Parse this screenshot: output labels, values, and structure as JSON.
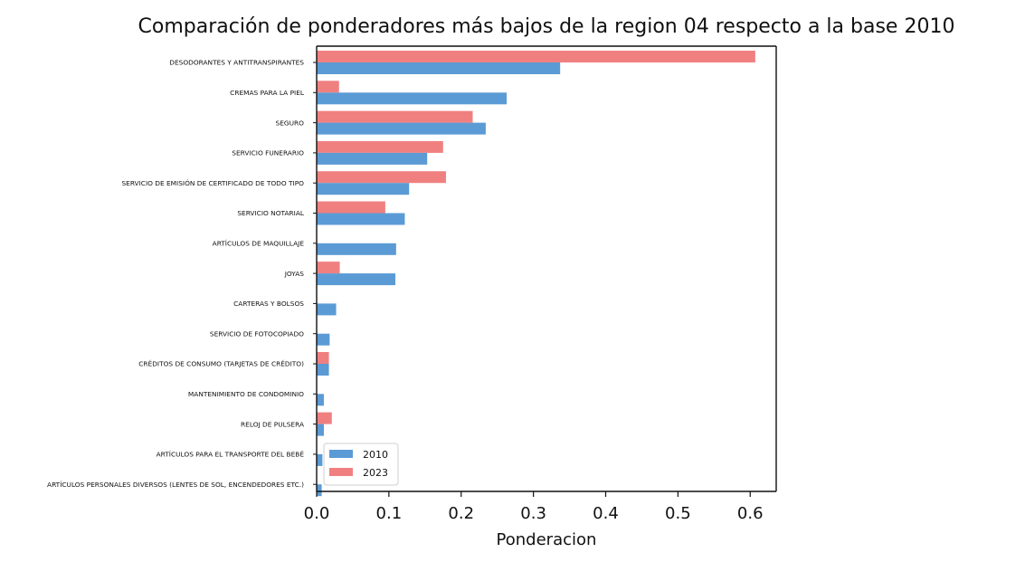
{
  "chart_data": {
    "type": "bar",
    "orientation": "horizontal",
    "title": "Comparación de ponderadores más bajos de la region 04 respecto a la base 2010",
    "xlabel": "Ponderacion",
    "ylabel": "",
    "xlim": [
      0,
      0.636
    ],
    "xticks": [
      "0.0",
      "0.1",
      "0.2",
      "0.3",
      "0.4",
      "0.5",
      "0.6"
    ],
    "grid": false,
    "legend_position": "lower-left",
    "categories": [
      "DESODORANTES Y ANTITRANSPIRANTES",
      "CREMAS PARA LA PIEL",
      "SEGURO",
      "SERVICIO FUNERARIO",
      "SERVICIO DE EMISIÓN DE CERTIFICADO DE TODO TIPO",
      "SERVICIO NOTARIAL",
      "ARTÍCULOS DE MAQUILLAJE",
      "JOYAS",
      "CARTERAS Y BOLSOS",
      "SERVICIO DE FOTOCOPIADO",
      "CRÉDITOS DE CONSUMO (TARJETAS DE CRÉDITO)",
      "MANTENIMIENTO DE CONDOMINIO",
      "RELOJ DE PULSERA",
      "ARTÍCULOS PARA EL TRANSPORTE DEL BEBÉ",
      "ARTÍCULOS PERSONALES DIVERSOS (LENTES DE SOL, ENCENDEDORES ETC.)"
    ],
    "series": [
      {
        "name": "2010",
        "color": "#5b9bd5",
        "values": [
          0.337,
          0.263,
          0.234,
          0.153,
          0.128,
          0.122,
          0.11,
          0.109,
          0.027,
          0.018,
          0.017,
          0.01,
          0.01,
          0.008,
          0.007
        ]
      },
      {
        "name": "2023",
        "color": "#f08080",
        "values": [
          0.607,
          0.031,
          0.216,
          0.175,
          0.179,
          0.095,
          0.0,
          0.032,
          0.0,
          0.0,
          0.017,
          0.0,
          0.021,
          0.0,
          0.0
        ]
      }
    ]
  }
}
